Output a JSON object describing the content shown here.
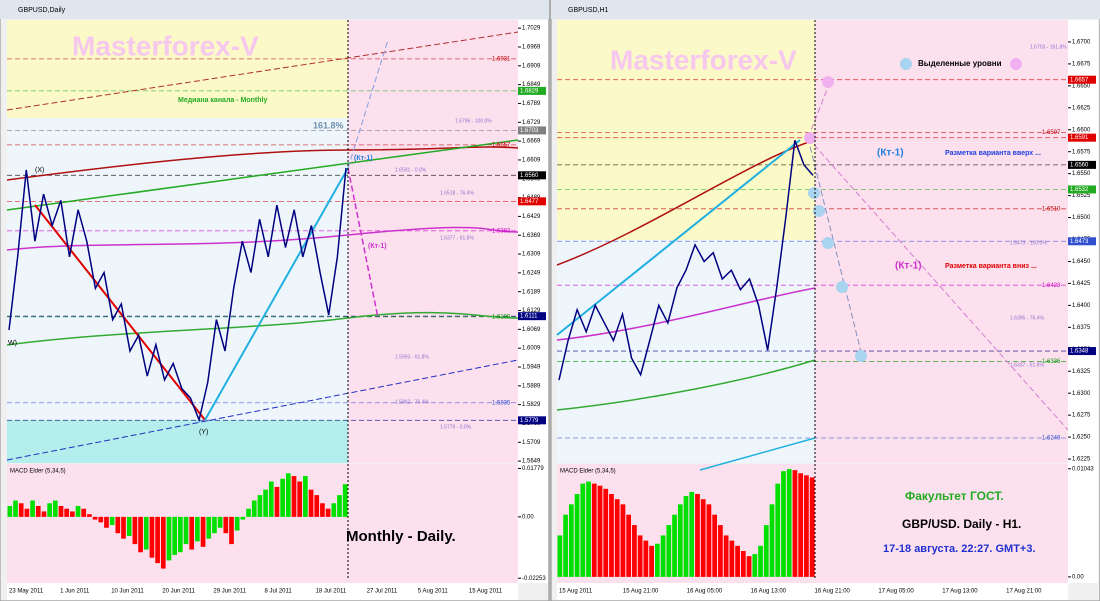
{
  "windows": [
    {
      "title": "GBPUSD,Daily",
      "watermark": "Masterforex-V",
      "price": {
        "ylim": [
          1.5643,
          1.7055
        ],
        "color": "#000080",
        "values": [
          1.6067,
          1.63,
          1.6577,
          1.635,
          1.65,
          1.64,
          1.648,
          1.63,
          1.645,
          1.635,
          1.62,
          1.625,
          1.61,
          1.615,
          1.6,
          1.605,
          1.592,
          1.602,
          1.5908,
          1.596,
          1.588,
          1.585,
          1.578,
          1.59,
          1.61,
          1.6,
          1.62,
          1.635,
          1.625,
          1.642,
          1.63,
          1.6465,
          1.633,
          1.645,
          1.63,
          1.64,
          1.625,
          1.6115,
          1.63,
          1.6583
        ],
        "yticks": [
          1.7029,
          1.6969,
          1.6909,
          1.6849,
          1.6789,
          1.6729,
          1.6669,
          1.6609,
          1.6549,
          1.6489,
          1.6429,
          1.6369,
          1.6309,
          1.6249,
          1.6189,
          1.6129,
          1.6069,
          1.6009,
          1.5949,
          1.5889,
          1.5829,
          1.5769,
          1.5709,
          1.5649
        ],
        "tags": [
          {
            "value": 1.6931,
            "color": "#c00000",
            "style": "text"
          },
          {
            "value": 1.6829,
            "color": "#22aa22",
            "style": "box"
          },
          {
            "value": 1.6703,
            "color": "#808080",
            "style": "box"
          },
          {
            "value": 1.6657,
            "color": "#c00000",
            "style": "text"
          },
          {
            "value": 1.656,
            "label": "1.6560",
            "color": "#000000",
            "style": "box"
          },
          {
            "value": 1.6477,
            "color": "#e00000",
            "style": "box"
          },
          {
            "value": 1.6383,
            "color": "#cc00cc",
            "style": "text"
          },
          {
            "value": 1.6109,
            "color": "#009900",
            "style": "text"
          },
          {
            "value": 1.6111,
            "color": "#000080",
            "style": "box"
          },
          {
            "value": 1.5835,
            "color": "#3050d0",
            "style": "text"
          },
          {
            "value": 1.5779,
            "color": "#000080",
            "style": "box"
          }
        ]
      },
      "dates": [
        "23 May 2011",
        "1 Jun 2011",
        "10 Jun 2011",
        "20 Jun 2011",
        "29 Jun 2011",
        "8 Jul 2011",
        "18 Jul 2011",
        "27 Jul 2011",
        "5 Aug 2011",
        "15 Aug 2011"
      ],
      "labels": {
        "median": "Медиана канала - Monthly",
        "fib_ext": "161.8%",
        "x": "(X)",
        "y": "(Y)",
        "w": "W)",
        "kt_up": "(Кт-1)",
        "kt_down": "(Кт-1)",
        "caption": "Monthly -  Daily."
      },
      "fib_labels": [
        "1.6796 - 100.0%",
        "1.6591 - 0.0%",
        "1.6518 - 76.4%",
        "1.6377 - 61.8%",
        "1.5993 - 61.8%",
        "1.5862 - 76.4%",
        "1.5779 - 0.0%"
      ],
      "macd": {
        "title": "MACD Elder (5,34,5)",
        "ylim": [
          -0.0232,
          0.0187
        ],
        "yticks": [
          0.01779,
          {
            "value": 0,
            "label": "0.00"
          },
          -0.02253
        ],
        "colors": {
          "up": "#00e000",
          "down": "#ff0000"
        },
        "values": [
          0.004,
          0.006,
          0.005,
          0.003,
          0.006,
          0.004,
          0.002,
          0.005,
          0.006,
          0.004,
          0.003,
          0.002,
          0.004,
          0.003,
          0.001,
          -0.001,
          -0.002,
          -0.004,
          -0.003,
          -0.006,
          -0.008,
          -0.007,
          -0.01,
          -0.013,
          -0.012,
          -0.015,
          -0.017,
          -0.019,
          -0.016,
          -0.014,
          -0.013,
          -0.01,
          -0.012,
          -0.009,
          -0.011,
          -0.008,
          -0.006,
          -0.004,
          -0.006,
          -0.01,
          -0.005,
          -0.001,
          0.003,
          0.006,
          0.008,
          0.01,
          0.013,
          0.011,
          0.014,
          0.016,
          0.015,
          0.013,
          0.015,
          0.01,
          0.008,
          0.005,
          0.003,
          0.005,
          0.008,
          0.012
        ]
      }
    },
    {
      "title": "GBPUSD,H1",
      "watermark": "Masterforex-V",
      "price": {
        "ylim": [
          1.62205,
          1.6725
        ],
        "color": "#000080",
        "values": [
          1.6315,
          1.636,
          1.6395,
          1.637,
          1.64,
          1.638,
          1.636,
          1.639,
          1.634,
          1.6321,
          1.636,
          1.64,
          1.638,
          1.642,
          1.644,
          1.6469,
          1.645,
          1.646,
          1.643,
          1.644,
          1.6418,
          1.643,
          1.64,
          1.6349,
          1.642,
          1.65,
          1.6588,
          1.656,
          1.6548
        ],
        "yticks": [
          {
            "value": 1.67,
            "label": "1.6700"
          },
          1.6675,
          {
            "value": 1.665,
            "label": "1.6650"
          },
          1.6625,
          {
            "value": 1.66,
            "label": "1.6600"
          },
          1.6575,
          {
            "value": 1.655,
            "label": "1.6550"
          },
          1.6525,
          {
            "value": 1.65,
            "label": "1.6500"
          },
          1.6475,
          {
            "value": 1.645,
            "label": "1.6450"
          },
          1.6425,
          {
            "value": 1.64,
            "label": "1.6400"
          },
          1.6375,
          {
            "value": 1.635,
            "label": "1.6350"
          },
          1.6325,
          {
            "value": 1.63,
            "label": "1.6300"
          },
          1.6275,
          {
            "value": 1.625,
            "label": "1.6250"
          },
          1.6225
        ],
        "tags": [
          {
            "value": 1.6657,
            "color": "#e00000",
            "style": "box"
          },
          {
            "value": 1.6597,
            "color": "#c00000",
            "style": "text"
          },
          {
            "value": 1.6591,
            "color": "#e00000",
            "style": "box"
          },
          {
            "value": 1.656,
            "label": "1.6560",
            "color": "#000000",
            "style": "box"
          },
          {
            "value": 1.6532,
            "color": "#22aa22",
            "style": "box"
          },
          {
            "value": 1.651,
            "label": "1.6510",
            "color": "#c00000",
            "style": "text"
          },
          {
            "value": 1.6473,
            "color": "#3050d0",
            "style": "box"
          },
          {
            "value": 1.6423,
            "color": "#cc00cc",
            "style": "text"
          },
          {
            "value": 1.6348,
            "color": "#000080",
            "style": "box"
          },
          {
            "value": 1.6336,
            "color": "#009900",
            "style": "text"
          },
          {
            "value": 1.6249,
            "color": "#3050d0",
            "style": "text"
          }
        ]
      },
      "dates": [
        "15 Aug 2011",
        "15 Aug 21:00",
        "16 Aug 05:00",
        "16 Aug 13:00",
        "16 Aug 21:00",
        "17 Aug 05:00",
        "17 Aug 13:00",
        "17 Aug 21:00"
      ],
      "labels": {
        "legend": "Выделенные уровни",
        "kt_up": "(Кт-1)",
        "up_note": "Разметка варианта вверх ...",
        "kt_down": "(Кт-1)",
        "down_note": "Разметка варианта вниз ...",
        "faculty": "Факультет ГОСТ.",
        "pair": "GBP/USD. Daily - H1.",
        "date": "17-18  августа. 22:27. GMT+3."
      },
      "fib_labels": [
        "1.6703 - 161.8%",
        "1.6473 - 100.0%",
        "1.6395 - 76.4%",
        "1.6337 - 61.8%"
      ],
      "macd": {
        "title": "MACD Elder (5,34,5)",
        "ylim": [
          -0.0003,
          0.0107
        ],
        "yticks": [
          0.01043,
          {
            "value": 0,
            "label": "0.00"
          }
        ],
        "colors": {
          "up": "#00e000",
          "down": "#ff0000"
        },
        "values": [
          0.004,
          0.006,
          0.007,
          0.008,
          0.009,
          0.0092,
          0.009,
          0.0088,
          0.0085,
          0.008,
          0.0075,
          0.007,
          0.006,
          0.005,
          0.004,
          0.0035,
          0.003,
          0.0032,
          0.004,
          0.005,
          0.006,
          0.007,
          0.0078,
          0.0082,
          0.008,
          0.0075,
          0.007,
          0.006,
          0.005,
          0.004,
          0.0035,
          0.003,
          0.0025,
          0.002,
          0.0022,
          0.003,
          0.005,
          0.007,
          0.009,
          0.0102,
          0.0104,
          0.0103,
          0.01,
          0.0098,
          0.0096
        ]
      }
    }
  ]
}
